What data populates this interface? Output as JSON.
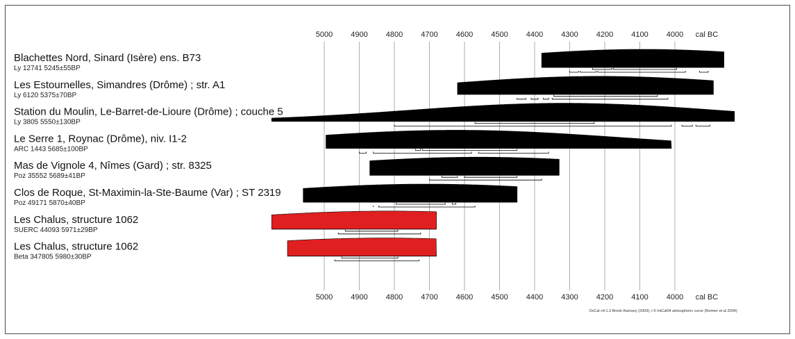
{
  "chart_data": {
    "type": "oxcal-multiplot",
    "x_axis": {
      "label": "cal BC",
      "ticks": [
        5000,
        4900,
        4800,
        4700,
        4600,
        4500,
        4400,
        4300,
        4200,
        4100,
        4000
      ],
      "range": [
        5000,
        4000
      ],
      "direction": "reversed"
    },
    "grid": true,
    "credit": "OxCal v4.1.3 Bronk Ramsey (2009); r:5 IntCal04 atmospheric curve (Reimer et al 2004)",
    "series": [
      {
        "name": "Blachettes Nord, Sinard (Isère) ens. B73",
        "lab": "Ly 12741 5245±55BP",
        "color": "#000000",
        "line": [
          4380,
          3860
        ],
        "peaks": [
          [
            4214,
            4250,
            50
          ],
          [
            4134,
            4170,
            62
          ],
          [
            4080,
            4100,
            42
          ],
          [
            4011,
            4070,
            98
          ]
        ],
        "sigma68": [
          [
            4235,
            4180
          ],
          [
            4175,
            3995
          ]
        ],
        "sigma95": [
          [
            4300,
            4275
          ],
          [
            4270,
            4225
          ],
          [
            4220,
            3970
          ],
          [
            3930,
            3905
          ]
        ]
      },
      {
        "name": "Les Estournelles, Simandres (Drôme) ; str. A1",
        "lab": "Ly 6120 5375±70BP",
        "color": "#000000",
        "line": [
          4620,
          3890
        ],
        "peaks": [
          [
            4290,
            4320,
            95
          ],
          [
            4233,
            4300,
            78
          ],
          [
            4164,
            4280,
            65
          ],
          [
            4116,
            4225,
            55
          ]
        ],
        "sigma68": [
          [
            4345,
            4050
          ]
        ],
        "sigma95": [
          [
            4450,
            4425
          ],
          [
            4410,
            4390
          ],
          [
            4375,
            4360
          ],
          [
            4350,
            4020
          ]
        ]
      },
      {
        "name": "Station du Moulin, Le-Barret-de-Lioure (Drôme) ; couche 5",
        "lab": "Ly 3805 5550±130BP",
        "color": "#000000",
        "line": [
          5150,
          3830
        ],
        "peaks": [
          [
            4428,
            4440,
            100
          ],
          [
            4370,
            4410,
            100
          ],
          [
            4280,
            4380,
            100
          ],
          [
            4197,
            4220,
            100
          ]
        ],
        "sigma68": [
          [
            4570,
            4230
          ]
        ],
        "sigma95": [
          [
            4800,
            4010
          ],
          [
            3980,
            3950
          ],
          [
            3940,
            3900
          ]
        ]
      },
      {
        "name": "Le Serre 1, Roynac (Drôme), niv. I1-2",
        "lab": "ARC 1443 5685±100BP",
        "color": "#000000",
        "line": [
          4995,
          4010
        ],
        "peaks": [
          [
            4678,
            4690,
            100
          ],
          [
            4653,
            4600,
            85
          ],
          [
            4572,
            4450,
            60
          ],
          [
            4511,
            4590,
            38
          ]
        ],
        "sigma68": [
          [
            4740,
            4725
          ],
          [
            4720,
            4450
          ]
        ],
        "sigma95": [
          [
            4900,
            4880
          ],
          [
            4860,
            4580
          ],
          [
            4560,
            4360
          ]
        ]
      },
      {
        "name": "Mas de Vignole 4, Nîmes (Gard) ; str. 8325",
        "lab": "Poz 35552 5689±41BP",
        "color": "#000000",
        "line": [
          4870,
          4330
        ],
        "peaks": [
          [
            4662,
            4610,
            62
          ],
          [
            4586,
            4560,
            58
          ],
          [
            4530,
            4490,
            100
          ],
          [
            4468,
            4600,
            50
          ]
        ],
        "sigma68": [
          [
            4665,
            4620
          ],
          [
            4600,
            4450
          ]
        ],
        "sigma95": [
          [
            4700,
            4380
          ]
        ]
      },
      {
        "name": "Clos de Roque, St-Maximin-la-Ste-Baume (Var) ; ST 2319",
        "lab": "Poz 49171 5870±40BP",
        "color": "#000000",
        "line": [
          5060,
          4450
        ],
        "peaks": [
          [
            4788,
            4810,
            58
          ],
          [
            4721,
            4730,
            100
          ],
          [
            4665,
            4640,
            52
          ],
          [
            4620,
            4600,
            36
          ]
        ],
        "sigma68": [
          [
            4795,
            4655
          ],
          [
            4635,
            4625
          ]
        ],
        "sigma95": [
          [
            4860,
            4860
          ],
          [
            4845,
            4570
          ]
        ]
      },
      {
        "name": "Les Chalus, structure 1062",
        "lab": "SUERC 44093 5971±29BP",
        "color": "#e02020",
        "line": [
          5150,
          4680
        ],
        "peaks": [
          [
            4887,
            4940,
            62
          ],
          [
            4854,
            4865,
            90
          ],
          [
            4804,
            4820,
            100
          ],
          [
            4793,
            4825,
            62
          ],
          [
            4760,
            4745,
            80
          ]
        ],
        "sigma68": [
          [
            4940,
            4790
          ]
        ],
        "sigma95": [
          [
            4960,
            4725
          ]
        ]
      },
      {
        "name": "Les Chalus, structure 1062",
        "lab": "Beta 347805 5980±30BP",
        "color": "#e02020",
        "line": [
          5105,
          4680
        ],
        "peaks": [
          [
            4902,
            4935,
            60
          ],
          [
            4857,
            4835,
            88
          ],
          [
            4815,
            4830,
            100
          ],
          [
            4795,
            4835,
            60
          ],
          [
            4776,
            4820,
            72
          ]
        ],
        "sigma68": [
          [
            4950,
            4790
          ]
        ],
        "sigma95": [
          [
            4970,
            4730
          ]
        ]
      }
    ]
  }
}
